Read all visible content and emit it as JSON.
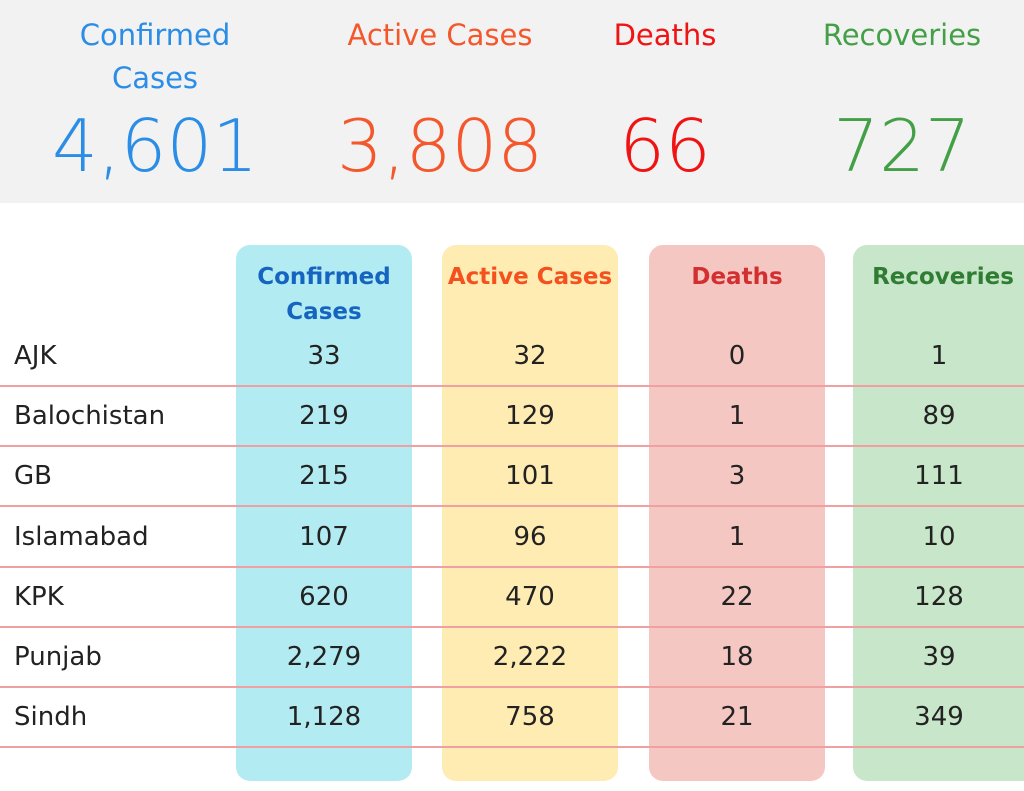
{
  "summary": [
    {
      "label": "Confirmed Cases",
      "value": "4,601",
      "color": "#2b8de6"
    },
    {
      "label": "Active Cases",
      "value": "3,808",
      "color": "#f4572b"
    },
    {
      "label": "Deaths",
      "value": "66",
      "color": "#f01313"
    },
    {
      "label": "Recoveries",
      "value": "727",
      "color": "#43a047"
    }
  ],
  "table": {
    "headers": [
      {
        "label": "Confirmed Cases",
        "color": "#1565c0",
        "bg": "#b3ebf2"
      },
      {
        "label": "Active Cases",
        "color": "#f4511e",
        "bg": "#ffecb3"
      },
      {
        "label": "Deaths",
        "color": "#d32f2f",
        "bg": "#f4c7c3"
      },
      {
        "label": "Recoveries",
        "color": "#2e7d32",
        "bg": "#c8e6c9"
      }
    ],
    "rows": [
      {
        "region": "AJK",
        "values": [
          "33",
          "32",
          "0",
          "1"
        ]
      },
      {
        "region": "Balochistan",
        "values": [
          "219",
          "129",
          "1",
          "89"
        ]
      },
      {
        "region": "GB",
        "values": [
          "215",
          "101",
          "3",
          "111"
        ]
      },
      {
        "region": "Islamabad",
        "values": [
          "107",
          "96",
          "1",
          "10"
        ]
      },
      {
        "region": "KPK",
        "values": [
          "620",
          "470",
          "22",
          "128"
        ]
      },
      {
        "region": "Punjab",
        "values": [
          "2,279",
          "2,222",
          "18",
          "39"
        ]
      },
      {
        "region": "Sindh",
        "values": [
          "1,128",
          "758",
          "21",
          "349"
        ]
      }
    ]
  }
}
